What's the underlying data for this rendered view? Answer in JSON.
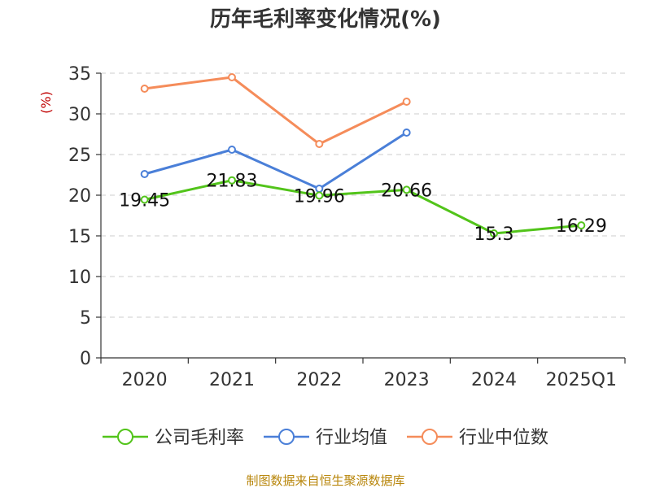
{
  "chart_data": {
    "type": "line",
    "title": "历年毛利率变化情况(%)",
    "ylabel": "(%)",
    "categories": [
      "2020",
      "2021",
      "2022",
      "2023",
      "2024",
      "2025Q1"
    ],
    "ylim": [
      0,
      35
    ],
    "yticks": [
      "0",
      "5",
      "10",
      "15",
      "20",
      "25",
      "30",
      "35"
    ],
    "grid": true,
    "legend_position": "bottom",
    "series": [
      {
        "name": "公司毛利率",
        "color": "#52c41a",
        "values": [
          19.45,
          21.83,
          19.96,
          20.66,
          15.3,
          16.29
        ],
        "labels": [
          "19.45",
          "21.83",
          "19.96",
          "20.66",
          "15.3",
          "16.29"
        ]
      },
      {
        "name": "行业均值",
        "color": "#4a7fd8",
        "values": [
          22.6,
          25.6,
          20.8,
          27.7,
          null,
          null
        ]
      },
      {
        "name": "行业中位数",
        "color": "#f58c5a",
        "values": [
          33.1,
          34.5,
          26.3,
          31.5,
          null,
          null
        ]
      }
    ]
  },
  "footer": {
    "source": "制图数据来自恒生聚源数据库"
  }
}
